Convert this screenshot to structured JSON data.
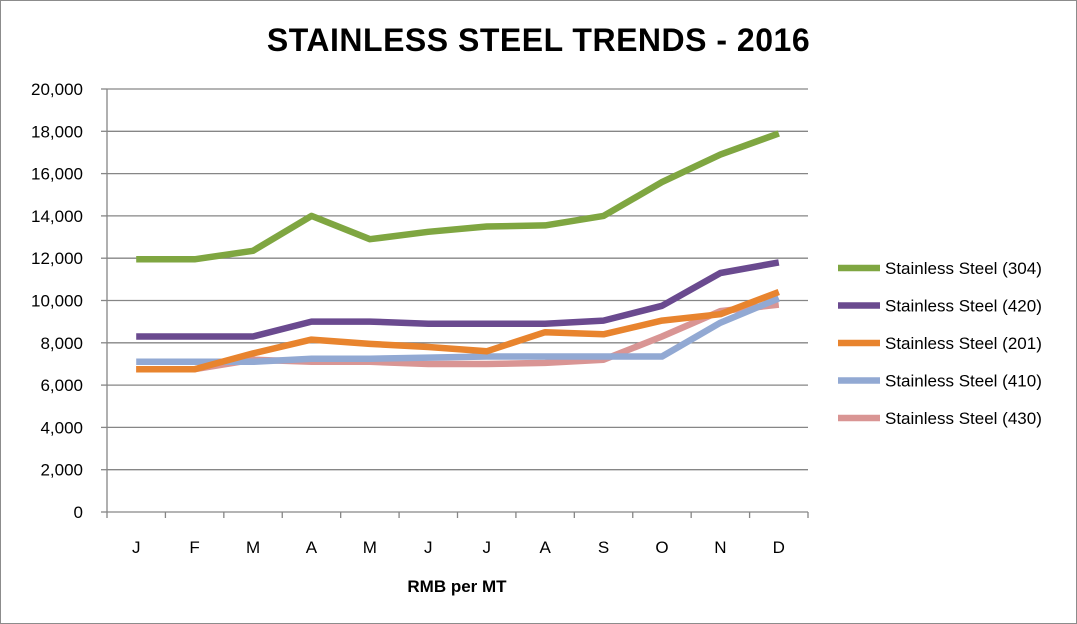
{
  "chart_data": {
    "type": "line",
    "title": "STAINLESS STEEL TRENDS - 2016",
    "xlabel": "RMB per MT",
    "ylabel": "",
    "categories": [
      "J",
      "F",
      "M",
      "A",
      "M",
      "J",
      "J",
      "A",
      "S",
      "O",
      "N",
      "D"
    ],
    "ylim": [
      0,
      20000
    ],
    "yticks": [
      0,
      2000,
      4000,
      6000,
      8000,
      10000,
      12000,
      14000,
      16000,
      18000,
      20000
    ],
    "ytick_labels": [
      "0",
      "2,000",
      "4,000",
      "6,000",
      "8,000",
      "10,000",
      "12,000",
      "14,000",
      "16,000",
      "18,000",
      "20,000"
    ],
    "grid": true,
    "legend_position": "right",
    "series": [
      {
        "name": "Stainless Steel (304)",
        "color": "#7fa641",
        "values": [
          11950,
          11950,
          12350,
          14000,
          12900,
          13250,
          13500,
          13550,
          14000,
          15600,
          16900,
          17900
        ]
      },
      {
        "name": "Stainless Steel (420)",
        "color": "#6a4a8f",
        "values": [
          8300,
          8300,
          8300,
          9000,
          9000,
          8900,
          8900,
          8900,
          9050,
          9750,
          11300,
          11800
        ]
      },
      {
        "name": "Stainless Steel (201)",
        "color": "#e8842e",
        "values": [
          6750,
          6750,
          7500,
          8150,
          7950,
          7800,
          7600,
          8500,
          8400,
          9050,
          9350,
          10400
        ]
      },
      {
        "name": "Stainless Steel (410)",
        "color": "#92a9d3",
        "values": [
          7100,
          7100,
          7100,
          7250,
          7250,
          7300,
          7350,
          7350,
          7350,
          7350,
          8950,
          10100
        ]
      },
      {
        "name": "Stainless Steel (430)",
        "color": "#d99594",
        "values": [
          6750,
          6750,
          7200,
          7100,
          7100,
          7000,
          7000,
          7050,
          7200,
          8300,
          9500,
          9800
        ]
      }
    ]
  }
}
